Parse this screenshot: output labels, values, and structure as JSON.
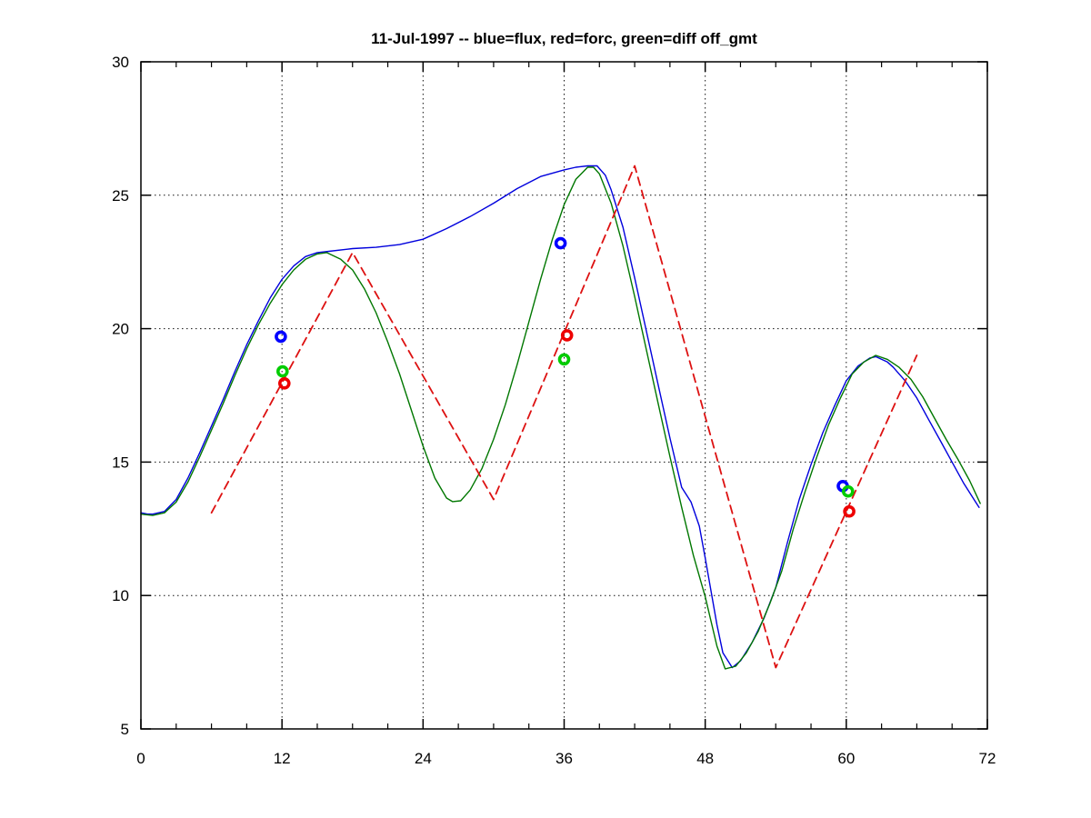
{
  "title": "11-Jul-1997 -- blue=flux, red=forc, green=diff off_gmt",
  "chart_data": {
    "type": "line",
    "title": "11-Jul-1997 -- blue=flux, red=forc, green=diff off_gmt",
    "xlabel": "",
    "ylabel": "",
    "xlim": [
      0,
      72
    ],
    "ylim": [
      5,
      30
    ],
    "xticks": [
      0,
      12,
      24,
      36,
      48,
      60,
      72
    ],
    "yticks": [
      5,
      10,
      15,
      20,
      25,
      30
    ],
    "x_minor_step": 3,
    "grid": "dotted",
    "legend_in_title": {
      "blue": "flux",
      "red": "forc",
      "green": "diff"
    },
    "series": [
      {
        "name": "flux",
        "color": "#0000dd",
        "style": "solid",
        "width": 1.4,
        "points": [
          [
            0,
            13.1
          ],
          [
            0.5,
            13.06
          ],
          [
            1,
            13.05
          ],
          [
            2,
            13.15
          ],
          [
            3,
            13.6
          ],
          [
            4,
            14.4
          ],
          [
            5,
            15.35
          ],
          [
            6,
            16.35
          ],
          [
            7,
            17.35
          ],
          [
            8,
            18.4
          ],
          [
            9,
            19.4
          ],
          [
            10,
            20.3
          ],
          [
            11,
            21.15
          ],
          [
            12,
            21.85
          ],
          [
            13,
            22.35
          ],
          [
            14,
            22.7
          ],
          [
            15,
            22.85
          ],
          [
            16,
            22.9
          ],
          [
            18,
            23.0
          ],
          [
            20,
            23.05
          ],
          [
            22,
            23.15
          ],
          [
            24,
            23.35
          ],
          [
            26,
            23.75
          ],
          [
            28,
            24.2
          ],
          [
            30,
            24.7
          ],
          [
            32,
            25.25
          ],
          [
            34,
            25.7
          ],
          [
            36,
            25.95
          ],
          [
            37,
            26.05
          ],
          [
            38,
            26.1
          ],
          [
            38.8,
            26.1
          ],
          [
            39.5,
            25.75
          ],
          [
            40,
            25.2
          ],
          [
            41,
            23.8
          ],
          [
            42,
            21.9
          ],
          [
            43,
            19.9
          ],
          [
            44,
            17.9
          ],
          [
            45,
            15.9
          ],
          [
            46,
            14.05
          ],
          [
            46.8,
            13.5
          ],
          [
            47.5,
            12.6
          ],
          [
            48,
            11.4
          ],
          [
            49,
            8.9
          ],
          [
            49.5,
            7.85
          ],
          [
            50.3,
            7.3
          ],
          [
            51,
            7.55
          ],
          [
            52,
            8.25
          ],
          [
            53,
            9.15
          ],
          [
            54,
            10.3
          ],
          [
            55,
            12.0
          ],
          [
            56,
            13.6
          ],
          [
            57,
            14.9
          ],
          [
            58,
            16.1
          ],
          [
            59,
            17.1
          ],
          [
            60,
            18.05
          ],
          [
            61,
            18.6
          ],
          [
            62,
            18.9
          ],
          [
            62.5,
            18.95
          ],
          [
            63.5,
            18.75
          ],
          [
            64,
            18.55
          ],
          [
            65,
            18.05
          ],
          [
            66,
            17.4
          ],
          [
            67,
            16.6
          ],
          [
            68,
            15.8
          ],
          [
            69,
            15.0
          ],
          [
            70,
            14.2
          ],
          [
            71,
            13.5
          ],
          [
            71.3,
            13.3
          ]
        ]
      },
      {
        "name": "diff",
        "color": "#007700",
        "style": "solid",
        "width": 1.4,
        "points": [
          [
            0,
            13.05
          ],
          [
            1,
            13.0
          ],
          [
            2,
            13.1
          ],
          [
            3,
            13.5
          ],
          [
            4,
            14.25
          ],
          [
            5,
            15.2
          ],
          [
            6,
            16.2
          ],
          [
            7,
            17.2
          ],
          [
            8,
            18.25
          ],
          [
            9,
            19.25
          ],
          [
            10,
            20.15
          ],
          [
            11,
            20.95
          ],
          [
            12,
            21.65
          ],
          [
            13,
            22.2
          ],
          [
            14,
            22.6
          ],
          [
            15,
            22.8
          ],
          [
            15.8,
            22.85
          ],
          [
            17,
            22.6
          ],
          [
            18,
            22.2
          ],
          [
            19,
            21.5
          ],
          [
            20,
            20.6
          ],
          [
            21,
            19.5
          ],
          [
            22,
            18.3
          ],
          [
            23,
            16.95
          ],
          [
            24,
            15.6
          ],
          [
            25,
            14.4
          ],
          [
            26,
            13.65
          ],
          [
            26.5,
            13.52
          ],
          [
            27.2,
            13.55
          ],
          [
            28,
            13.95
          ],
          [
            29,
            14.75
          ],
          [
            30,
            15.85
          ],
          [
            31,
            17.15
          ],
          [
            32,
            18.65
          ],
          [
            33,
            20.25
          ],
          [
            34,
            21.85
          ],
          [
            35,
            23.35
          ],
          [
            36,
            24.65
          ],
          [
            37,
            25.6
          ],
          [
            38,
            26.05
          ],
          [
            38.5,
            26.05
          ],
          [
            39,
            25.8
          ],
          [
            40,
            24.7
          ],
          [
            41,
            23.1
          ],
          [
            42,
            21.2
          ],
          [
            43,
            19.2
          ],
          [
            44,
            17.2
          ],
          [
            45,
            15.2
          ],
          [
            46,
            13.3
          ],
          [
            47,
            11.5
          ],
          [
            48,
            9.95
          ],
          [
            49,
            8.1
          ],
          [
            49.7,
            7.25
          ],
          [
            50.6,
            7.35
          ],
          [
            51.5,
            7.85
          ],
          [
            52.5,
            8.65
          ],
          [
            53.5,
            9.7
          ],
          [
            54.5,
            10.9
          ],
          [
            55.5,
            12.5
          ],
          [
            56.5,
            13.9
          ],
          [
            57.5,
            15.2
          ],
          [
            58.5,
            16.4
          ],
          [
            59.5,
            17.4
          ],
          [
            60.5,
            18.3
          ],
          [
            61.5,
            18.75
          ],
          [
            62.5,
            19.0
          ],
          [
            63.5,
            18.85
          ],
          [
            64.5,
            18.55
          ],
          [
            65.5,
            18.1
          ],
          [
            66.5,
            17.45
          ],
          [
            67.5,
            16.65
          ],
          [
            68.5,
            15.85
          ],
          [
            69.5,
            15.1
          ],
          [
            70.5,
            14.3
          ],
          [
            71.4,
            13.45
          ]
        ]
      },
      {
        "name": "forc",
        "color": "#dd1111",
        "style": "dashed",
        "width": 1.8,
        "points": [
          [
            6,
            13.1
          ],
          [
            18,
            22.85
          ],
          [
            30,
            13.6
          ],
          [
            42,
            26.1
          ],
          [
            54,
            7.3
          ],
          [
            66,
            19.0
          ]
        ]
      }
    ],
    "markers": [
      {
        "name": "flux-obs",
        "color": "#0000ff",
        "points": [
          [
            11.9,
            19.7
          ],
          [
            35.7,
            23.2
          ],
          [
            59.7,
            14.1
          ]
        ]
      },
      {
        "name": "diff-obs",
        "color": "#00cc00",
        "points": [
          [
            12.05,
            18.4
          ],
          [
            36.0,
            18.85
          ],
          [
            60.15,
            13.9
          ]
        ]
      },
      {
        "name": "forc-obs",
        "color": "#ee0000",
        "points": [
          [
            12.2,
            17.95
          ],
          [
            36.25,
            19.75
          ],
          [
            60.25,
            13.15
          ]
        ]
      }
    ]
  }
}
